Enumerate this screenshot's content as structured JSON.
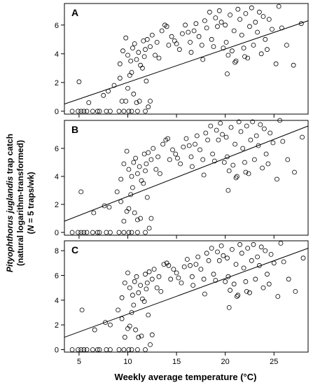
{
  "figure": {
    "ylabel_line1_italic": "Pityophthorus juglandis",
    "ylabel_line1_rest": " trap catch",
    "ylabel_line2": "(natural logarithm-transformed)",
    "ylabel_line3_n": "N",
    "ylabel_line3_rest": " = 5 traps/wk)",
    "ylabel_line3_open": "(",
    "xlabel": "Weekly average temperature (°C)"
  },
  "chart_data": [
    {
      "type": "scatter",
      "panel_label": "A",
      "xlim": [
        3.5,
        28.5
      ],
      "ylim": [
        -0.2,
        7.5
      ],
      "xticks": [
        5,
        10,
        15,
        20,
        25
      ],
      "yticks": [
        0,
        2,
        4,
        6
      ],
      "fit_line": {
        "x": [
          3.5,
          28.5
        ],
        "y": [
          0.5,
          6.3
        ]
      },
      "points": [
        [
          4.3,
          0
        ],
        [
          4.9,
          0
        ],
        [
          5.2,
          0
        ],
        [
          5.5,
          0
        ],
        [
          5.8,
          0
        ],
        [
          6.4,
          0
        ],
        [
          6.9,
          0
        ],
        [
          7.1,
          0
        ],
        [
          7.8,
          0
        ],
        [
          8.2,
          0
        ],
        [
          9.1,
          0
        ],
        [
          9.6,
          0
        ],
        [
          10.1,
          0
        ],
        [
          10.4,
          0
        ],
        [
          11.0,
          0
        ],
        [
          11.8,
          0
        ],
        [
          5.0,
          2.05
        ],
        [
          6.0,
          0.6
        ],
        [
          7.5,
          1.1
        ],
        [
          8.0,
          1.4
        ],
        [
          8.6,
          1.8
        ],
        [
          9.2,
          2.3
        ],
        [
          9.4,
          0.7
        ],
        [
          9.8,
          0.7
        ],
        [
          10.0,
          1.6
        ],
        [
          10.2,
          2.5
        ],
        [
          10.4,
          2.7
        ],
        [
          10.6,
          1.2
        ],
        [
          10.9,
          0.6
        ],
        [
          11.2,
          0.7
        ],
        [
          11.5,
          3.0
        ],
        [
          11.7,
          3.8
        ],
        [
          11.9,
          2.1
        ],
        [
          12.1,
          0.3
        ],
        [
          12.3,
          0.7
        ],
        [
          9.2,
          3.3
        ],
        [
          9.5,
          4.2
        ],
        [
          9.8,
          5.1
        ],
        [
          10.0,
          3.9
        ],
        [
          10.3,
          3.5
        ],
        [
          10.5,
          4.4
        ],
        [
          10.7,
          4.7
        ],
        [
          10.9,
          3.6
        ],
        [
          11.1,
          4.1
        ],
        [
          11.3,
          3.2
        ],
        [
          11.6,
          4.9
        ],
        [
          11.8,
          4.3
        ],
        [
          12.0,
          5.0
        ],
        [
          12.3,
          4.5
        ],
        [
          12.5,
          5.3
        ],
        [
          12.8,
          3.9
        ],
        [
          13.0,
          4.8
        ],
        [
          13.2,
          3.7
        ],
        [
          13.5,
          5.6
        ],
        [
          13.8,
          6.0
        ],
        [
          14.0,
          5.9
        ],
        [
          14.2,
          4.6
        ],
        [
          14.5,
          5.2
        ],
        [
          14.8,
          4.9
        ],
        [
          15.0,
          4.7
        ],
        [
          15.3,
          4.3
        ],
        [
          15.6,
          5.4
        ],
        [
          15.9,
          6.0
        ],
        [
          16.2,
          5.5
        ],
        [
          16.4,
          4.8
        ],
        [
          16.5,
          4.1
        ],
        [
          16.8,
          5.6
        ],
        [
          17.0,
          6.1
        ],
        [
          17.3,
          5.2
        ],
        [
          17.6,
          4.6
        ],
        [
          17.9,
          6.3
        ],
        [
          18.1,
          5.8
        ],
        [
          18.4,
          6.9
        ],
        [
          18.6,
          5.0
        ],
        [
          18.8,
          4.5
        ],
        [
          19.0,
          6.5
        ],
        [
          19.2,
          5.9
        ],
        [
          19.4,
          7.0
        ],
        [
          19.6,
          6.2
        ],
        [
          19.8,
          4.4
        ],
        [
          20.0,
          6.0
        ],
        [
          20.1,
          4.8
        ],
        [
          20.2,
          2.6
        ],
        [
          20.3,
          3.9
        ],
        [
          20.5,
          6.7
        ],
        [
          20.7,
          4.2
        ],
        [
          20.9,
          5.6
        ],
        [
          21.1,
          3.5
        ],
        [
          21.3,
          7.1
        ],
        [
          21.5,
          6.4
        ],
        [
          21.7,
          5.3
        ],
        [
          21.9,
          4.4
        ],
        [
          22.1,
          6.8
        ],
        [
          22.3,
          3.7
        ],
        [
          22.5,
          5.9
        ],
        [
          22.7,
          7.2
        ],
        [
          22.9,
          4.6
        ],
        [
          23.1,
          6.2
        ],
        [
          23.3,
          5.5
        ],
        [
          23.5,
          6.9
        ],
        [
          23.7,
          4.0
        ],
        [
          23.9,
          6.6
        ],
        [
          24.1,
          5.0
        ],
        [
          24.3,
          4.3
        ],
        [
          24.5,
          6.4
        ],
        [
          24.8,
          5.7
        ],
        [
          25.2,
          3.3
        ],
        [
          25.5,
          7.3
        ],
        [
          25.8,
          5.8
        ],
        [
          26.3,
          4.6
        ],
        [
          27.0,
          3.2
        ],
        [
          27.8,
          6.1
        ],
        [
          17.7,
          3.6
        ],
        [
          21.0,
          3.4
        ],
        [
          22.0,
          3.8
        ]
      ]
    },
    {
      "type": "scatter",
      "panel_label": "B",
      "xlim": [
        3.5,
        28.5
      ],
      "ylim": [
        -0.2,
        8.0
      ],
      "xticks": [
        5,
        10,
        15,
        20,
        25
      ],
      "yticks": [
        0,
        2,
        4,
        6
      ],
      "fit_line": {
        "x": [
          3.5,
          28.5
        ],
        "y": [
          0.8,
          7.6
        ]
      },
      "points": [
        [
          4.3,
          0
        ],
        [
          4.9,
          0
        ],
        [
          5.2,
          0
        ],
        [
          5.5,
          0
        ],
        [
          5.8,
          0
        ],
        [
          6.4,
          0
        ],
        [
          6.9,
          0
        ],
        [
          7.1,
          0
        ],
        [
          7.8,
          0
        ],
        [
          8.2,
          0
        ],
        [
          9.1,
          0
        ],
        [
          9.6,
          0
        ],
        [
          10.1,
          0
        ],
        [
          10.4,
          0
        ],
        [
          11.0,
          0
        ],
        [
          11.8,
          0
        ],
        [
          5.2,
          2.9
        ],
        [
          6.5,
          1.4
        ],
        [
          7.6,
          1.9
        ],
        [
          8.1,
          1.8
        ],
        [
          8.9,
          2.9
        ],
        [
          9.3,
          2.2
        ],
        [
          9.6,
          0.8
        ],
        [
          9.9,
          1.5
        ],
        [
          10.1,
          1.7
        ],
        [
          10.3,
          2.7
        ],
        [
          10.5,
          3.2
        ],
        [
          10.7,
          1.4
        ],
        [
          11.0,
          0.9
        ],
        [
          11.3,
          1.0
        ],
        [
          11.6,
          3.5
        ],
        [
          11.8,
          4.4
        ],
        [
          12.0,
          2.5
        ],
        [
          12.2,
          0.3
        ],
        [
          12.4,
          1.0
        ],
        [
          9.3,
          3.8
        ],
        [
          9.6,
          4.9
        ],
        [
          9.9,
          5.8
        ],
        [
          10.1,
          4.5
        ],
        [
          10.4,
          4.0
        ],
        [
          10.6,
          5.0
        ],
        [
          10.8,
          5.3
        ],
        [
          11.0,
          4.2
        ],
        [
          11.2,
          4.7
        ],
        [
          11.4,
          3.7
        ],
        [
          11.7,
          5.6
        ],
        [
          11.9,
          4.9
        ],
        [
          12.1,
          5.7
        ],
        [
          12.4,
          5.2
        ],
        [
          12.6,
          6.0
        ],
        [
          12.9,
          4.5
        ],
        [
          13.1,
          5.4
        ],
        [
          13.3,
          4.2
        ],
        [
          13.6,
          6.3
        ],
        [
          13.9,
          6.6
        ],
        [
          14.1,
          6.7
        ],
        [
          14.3,
          5.2
        ],
        [
          14.6,
          5.9
        ],
        [
          14.9,
          5.6
        ],
        [
          15.1,
          5.3
        ],
        [
          15.4,
          4.9
        ],
        [
          15.7,
          6.1
        ],
        [
          16.0,
          6.7
        ],
        [
          16.3,
          6.2
        ],
        [
          16.5,
          5.4
        ],
        [
          16.6,
          4.7
        ],
        [
          16.9,
          6.3
        ],
        [
          17.1,
          6.9
        ],
        [
          17.4,
          5.9
        ],
        [
          17.7,
          5.2
        ],
        [
          18.0,
          7.1
        ],
        [
          18.2,
          6.6
        ],
        [
          18.5,
          7.6
        ],
        [
          18.7,
          5.6
        ],
        [
          18.9,
          5.1
        ],
        [
          19.1,
          7.3
        ],
        [
          19.3,
          6.6
        ],
        [
          19.5,
          7.8
        ],
        [
          19.7,
          7.0
        ],
        [
          19.9,
          5.0
        ],
        [
          20.1,
          6.8
        ],
        [
          20.2,
          5.4
        ],
        [
          20.3,
          3.0
        ],
        [
          20.4,
          4.4
        ],
        [
          20.6,
          7.5
        ],
        [
          20.8,
          4.8
        ],
        [
          21.0,
          6.3
        ],
        [
          21.2,
          4.0
        ],
        [
          21.4,
          7.9
        ],
        [
          21.6,
          7.2
        ],
        [
          21.8,
          6.0
        ],
        [
          22.0,
          5.0
        ],
        [
          22.2,
          7.6
        ],
        [
          22.4,
          4.2
        ],
        [
          22.6,
          6.6
        ],
        [
          22.8,
          7.9
        ],
        [
          23.0,
          5.2
        ],
        [
          23.2,
          6.9
        ],
        [
          23.4,
          6.2
        ],
        [
          23.6,
          7.7
        ],
        [
          23.8,
          4.6
        ],
        [
          24.0,
          7.4
        ],
        [
          24.2,
          5.6
        ],
        [
          24.4,
          4.9
        ],
        [
          24.6,
          7.1
        ],
        [
          24.9,
          6.4
        ],
        [
          25.3,
          3.8
        ],
        [
          25.6,
          8.0
        ],
        [
          25.9,
          6.5
        ],
        [
          26.4,
          5.2
        ],
        [
          27.1,
          4.3
        ],
        [
          27.9,
          6.8
        ],
        [
          17.8,
          4.1
        ],
        [
          21.1,
          3.9
        ],
        [
          22.1,
          4.3
        ]
      ]
    },
    {
      "type": "scatter",
      "panel_label": "C",
      "xlim": [
        3.5,
        28.5
      ],
      "ylim": [
        -0.2,
        8.8
      ],
      "xticks": [
        5,
        10,
        15,
        20,
        25
      ],
      "yticks": [
        0,
        2,
        4,
        6,
        8
      ],
      "fit_line": {
        "x": [
          3.5,
          28.5
        ],
        "y": [
          1.0,
          8.2
        ]
      },
      "points": [
        [
          4.3,
          0
        ],
        [
          4.9,
          0
        ],
        [
          5.2,
          0
        ],
        [
          5.5,
          0
        ],
        [
          5.8,
          0
        ],
        [
          6.4,
          0
        ],
        [
          6.9,
          0
        ],
        [
          7.1,
          0
        ],
        [
          7.8,
          0
        ],
        [
          8.2,
          0
        ],
        [
          9.1,
          0
        ],
        [
          9.6,
          0
        ],
        [
          10.1,
          0
        ],
        [
          10.4,
          0
        ],
        [
          11.0,
          0
        ],
        [
          11.8,
          0
        ],
        [
          5.3,
          3.2
        ],
        [
          6.6,
          1.6
        ],
        [
          7.7,
          2.2
        ],
        [
          8.2,
          2.0
        ],
        [
          9.0,
          3.2
        ],
        [
          9.4,
          2.5
        ],
        [
          9.7,
          1.0
        ],
        [
          10.0,
          1.7
        ],
        [
          10.2,
          1.9
        ],
        [
          10.4,
          3.0
        ],
        [
          10.6,
          3.6
        ],
        [
          10.8,
          1.6
        ],
        [
          11.1,
          1.0
        ],
        [
          11.4,
          1.1
        ],
        [
          11.7,
          3.9
        ],
        [
          11.9,
          4.9
        ],
        [
          12.1,
          2.8
        ],
        [
          12.3,
          0.4
        ],
        [
          12.5,
          1.2
        ],
        [
          9.4,
          4.2
        ],
        [
          9.7,
          5.4
        ],
        [
          10.0,
          6.2
        ],
        [
          10.2,
          5.0
        ],
        [
          10.5,
          4.4
        ],
        [
          10.7,
          5.5
        ],
        [
          10.9,
          5.9
        ],
        [
          11.1,
          4.6
        ],
        [
          11.3,
          5.2
        ],
        [
          11.5,
          4.1
        ],
        [
          11.8,
          6.1
        ],
        [
          12.0,
          5.4
        ],
        [
          12.2,
          6.3
        ],
        [
          12.5,
          5.7
        ],
        [
          12.7,
          6.5
        ],
        [
          13.0,
          5.0
        ],
        [
          13.2,
          5.9
        ],
        [
          13.4,
          4.7
        ],
        [
          13.7,
          6.9
        ],
        [
          14.0,
          7.0
        ],
        [
          14.2,
          6.8
        ],
        [
          14.4,
          5.7
        ],
        [
          14.7,
          6.5
        ],
        [
          15.0,
          6.2
        ],
        [
          15.2,
          5.8
        ],
        [
          15.5,
          5.4
        ],
        [
          15.8,
          6.7
        ],
        [
          16.1,
          7.3
        ],
        [
          16.4,
          6.8
        ],
        [
          16.6,
          5.9
        ],
        [
          16.7,
          5.2
        ],
        [
          17.0,
          6.9
        ],
        [
          17.2,
          7.5
        ],
        [
          17.5,
          6.5
        ],
        [
          17.8,
          5.7
        ],
        [
          18.1,
          7.8
        ],
        [
          18.3,
          7.2
        ],
        [
          18.6,
          8.2
        ],
        [
          18.8,
          6.1
        ],
        [
          19.0,
          5.6
        ],
        [
          19.2,
          7.9
        ],
        [
          19.4,
          7.2
        ],
        [
          19.6,
          8.4
        ],
        [
          19.8,
          7.6
        ],
        [
          20.0,
          5.5
        ],
        [
          20.2,
          7.4
        ],
        [
          20.3,
          5.9
        ],
        [
          20.4,
          3.4
        ],
        [
          20.5,
          4.8
        ],
        [
          20.7,
          8.1
        ],
        [
          20.9,
          5.3
        ],
        [
          21.1,
          6.9
        ],
        [
          21.3,
          4.4
        ],
        [
          21.5,
          8.5
        ],
        [
          21.7,
          7.8
        ],
        [
          21.9,
          6.6
        ],
        [
          22.1,
          5.5
        ],
        [
          22.3,
          8.2
        ],
        [
          22.5,
          4.6
        ],
        [
          22.7,
          7.2
        ],
        [
          22.9,
          8.5
        ],
        [
          23.1,
          5.7
        ],
        [
          23.3,
          7.5
        ],
        [
          23.5,
          6.8
        ],
        [
          23.7,
          8.3
        ],
        [
          23.9,
          5.0
        ],
        [
          24.1,
          8.0
        ],
        [
          24.3,
          6.1
        ],
        [
          24.5,
          5.3
        ],
        [
          24.7,
          7.7
        ],
        [
          25.0,
          7.0
        ],
        [
          25.4,
          4.3
        ],
        [
          25.7,
          8.6
        ],
        [
          26.0,
          7.1
        ],
        [
          26.5,
          5.7
        ],
        [
          27.2,
          4.7
        ],
        [
          28.0,
          7.4
        ],
        [
          17.9,
          4.5
        ],
        [
          21.2,
          4.3
        ],
        [
          22.2,
          4.7
        ]
      ]
    }
  ]
}
